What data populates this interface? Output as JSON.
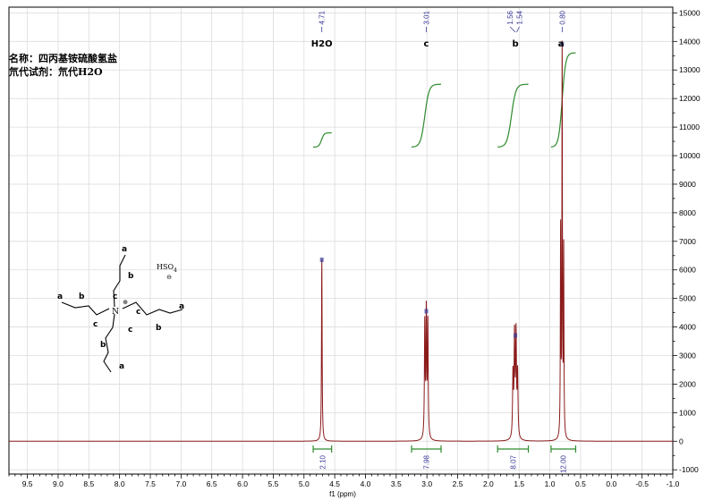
{
  "chart_data": {
    "type": "line",
    "title": "",
    "xlabel": "f1 (ppm)",
    "ylabel": "",
    "x_axis_reversed": true,
    "xlim": [
      9.8,
      -1.0
    ],
    "ylim": [
      -1150,
      15200
    ],
    "grid": true,
    "x_ticks": [
      9.5,
      9.0,
      8.5,
      8.0,
      7.5,
      7.0,
      6.5,
      6.0,
      5.5,
      5.0,
      4.5,
      4.0,
      3.5,
      3.0,
      2.5,
      2.0,
      1.5,
      1.0,
      0.5,
      0.0,
      -0.5,
      -1.0
    ],
    "x_tick_labels": [
      "9.5",
      "9.0",
      "8.5",
      "8.0",
      "7.5",
      "7.0",
      "6.5",
      "6.0",
      "5.5",
      "5.0",
      "4.5",
      "4.0",
      "3.5",
      "3.0",
      "2.5",
      "2.0",
      "1.5",
      "1.0",
      "0.5",
      "0.0",
      "-0.5",
      "-1.0"
    ],
    "y_ticks": [
      -1000,
      0,
      1000,
      2000,
      3000,
      4000,
      5000,
      6000,
      7000,
      8000,
      9000,
      10000,
      11000,
      12000,
      13000,
      14000,
      15000
    ],
    "y_tick_labels": [
      "-1000",
      "0",
      "1000",
      "2000",
      "3000",
      "4000",
      "5000",
      "6000",
      "7000",
      "8000",
      "9000",
      "10000",
      "11000",
      "12000",
      "13000",
      "14000",
      "15000"
    ],
    "series": [
      {
        "color": "#8b1a1a",
        "peaks": [
          {
            "shift": 4.71,
            "height": 6400,
            "width": 0.006
          },
          {
            "shift": 3.035,
            "height": 4000,
            "width": 0.007
          },
          {
            "shift": 3.01,
            "height": 4350,
            "width": 0.007
          },
          {
            "shift": 2.985,
            "height": 4000,
            "width": 0.007
          },
          {
            "shift": 1.6,
            "height": 2200,
            "width": 0.008
          },
          {
            "shift": 1.575,
            "height": 3500,
            "width": 0.008
          },
          {
            "shift": 1.55,
            "height": 3550,
            "width": 0.008
          },
          {
            "shift": 1.525,
            "height": 2200,
            "width": 0.008
          },
          {
            "shift": 0.825,
            "height": 7200,
            "width": 0.005
          },
          {
            "shift": 0.8,
            "height": 13500,
            "width": 0.005
          },
          {
            "shift": 0.775,
            "height": 6500,
            "width": 0.005
          }
        ]
      }
    ],
    "peak_labels": [
      {
        "shift": 4.71,
        "text": "4.71"
      },
      {
        "shift": 3.01,
        "text": "3.01"
      },
      {
        "shift": 1.56,
        "text": "1.56"
      },
      {
        "shift": 1.54,
        "text": "1.54"
      },
      {
        "shift": 0.8,
        "text": "0.80"
      }
    ],
    "assignments": [
      {
        "shift": 4.71,
        "text": "H2O"
      },
      {
        "shift": 3.01,
        "text": "c"
      },
      {
        "shift": 1.56,
        "text": "b"
      },
      {
        "shift": 0.82,
        "text": "a"
      }
    ],
    "integrals": [
      {
        "from": 4.85,
        "to": 4.55,
        "value": "2.10",
        "curve_from_y": 10300,
        "curve_to_y": 10800
      },
      {
        "from": 3.25,
        "to": 2.77,
        "value": "7.98",
        "curve_from_y": 10300,
        "curve_to_y": 12500
      },
      {
        "from": 1.85,
        "to": 1.35,
        "value": "8.07",
        "curve_from_y": 10300,
        "curve_to_y": 12500
      },
      {
        "from": 0.98,
        "to": 0.58,
        "value": "12.00",
        "curve_from_y": 10300,
        "curve_to_y": 13600
      }
    ],
    "integral_color": "#2e8b2e",
    "marker_color": "#3a3a9a"
  },
  "annotations": {
    "name_line": "名称：四丙基铵硫酸氢盐",
    "solvent_line": "氘代试剂：氘代H2O"
  },
  "structure": {
    "atom_n": "N",
    "charge_plus": "⊕",
    "counter_ion": "HSO",
    "counter_sub": "4",
    "counter_charge": "⊖",
    "labels": [
      "a",
      "b",
      "c",
      "a",
      "b",
      "c",
      "c",
      "b",
      "a",
      "c",
      "b",
      "a"
    ]
  }
}
